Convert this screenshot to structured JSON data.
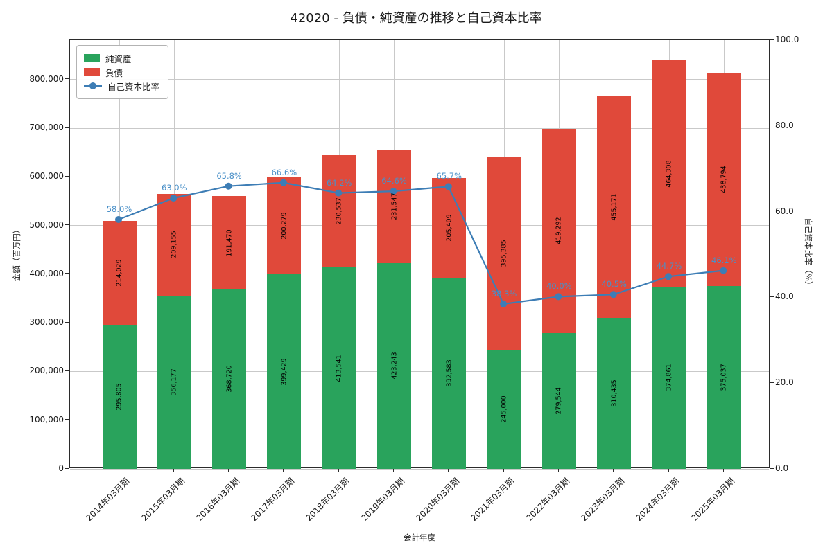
{
  "title": "42020 - 負債・純資産の推移と自己資本比率",
  "chart_data": {
    "type": "bar",
    "subtype": "stacked-bar-with-line",
    "categories": [
      "2014年03月期",
      "2015年03月期",
      "2016年03月期",
      "2017年03月期",
      "2018年03月期",
      "2019年03月期",
      "2020年03月期",
      "2021年03月期",
      "2022年03月期",
      "2023年03月期",
      "2024年03月期",
      "2025年03月期"
    ],
    "bar_series": [
      {
        "name": "純資産",
        "color": "#29a35c",
        "values": [
          295805,
          356177,
          368720,
          399429,
          413541,
          423243,
          392583,
          245000,
          279544,
          310435,
          374861,
          375037
        ],
        "labels": [
          "295,805",
          "356,177",
          "368,720",
          "399,429",
          "413,541",
          "423,243",
          "392,583",
          "245,000",
          "279,544",
          "310,435",
          "374,861",
          "375,037"
        ]
      },
      {
        "name": "負債",
        "color": "#e0493a",
        "values": [
          214029,
          209155,
          191470,
          200279,
          230537,
          231547,
          205409,
          395385,
          419292,
          455171,
          464308,
          438794
        ],
        "labels": [
          "214,029",
          "209,155",
          "191,470",
          "200,279",
          "230,537",
          "231,547",
          "205,409",
          "395,385",
          "419,292",
          "455,171",
          "464,308",
          "438,794"
        ]
      }
    ],
    "line_series": {
      "name": "自己資本比率",
      "color": "#3d7db5",
      "label_color": "#4a90c8",
      "values": [
        58.0,
        63.0,
        65.8,
        66.6,
        64.2,
        64.6,
        65.7,
        38.3,
        40.0,
        40.5,
        44.7,
        46.1
      ],
      "labels": [
        "58.0%",
        "63.0%",
        "65.8%",
        "66.6%",
        "64.2%",
        "64.6%",
        "65.7%",
        "38.3%",
        "40.0%",
        "40.5%",
        "44.7%",
        "46.1%"
      ]
    },
    "xlabel": "会計年度",
    "ylabel_left": "金額（百万円）",
    "ylabel_right": "自己資本比率（%）",
    "y_left": {
      "min": 0,
      "max": 881000,
      "ticks": [
        0,
        100000,
        200000,
        300000,
        400000,
        500000,
        600000,
        700000,
        800000
      ],
      "tick_labels": [
        "0",
        "100,000",
        "200,000",
        "300,000",
        "400,000",
        "500,000",
        "600,000",
        "700,000",
        "800,000"
      ]
    },
    "y_right": {
      "min": 0,
      "max": 100,
      "ticks": [
        0,
        20,
        40,
        60,
        80,
        100
      ],
      "tick_labels": [
        "0.0",
        "20.0",
        "40.0",
        "60.0",
        "80.0",
        "100.0"
      ]
    },
    "grid": "on",
    "legend_position": "upper-left"
  }
}
